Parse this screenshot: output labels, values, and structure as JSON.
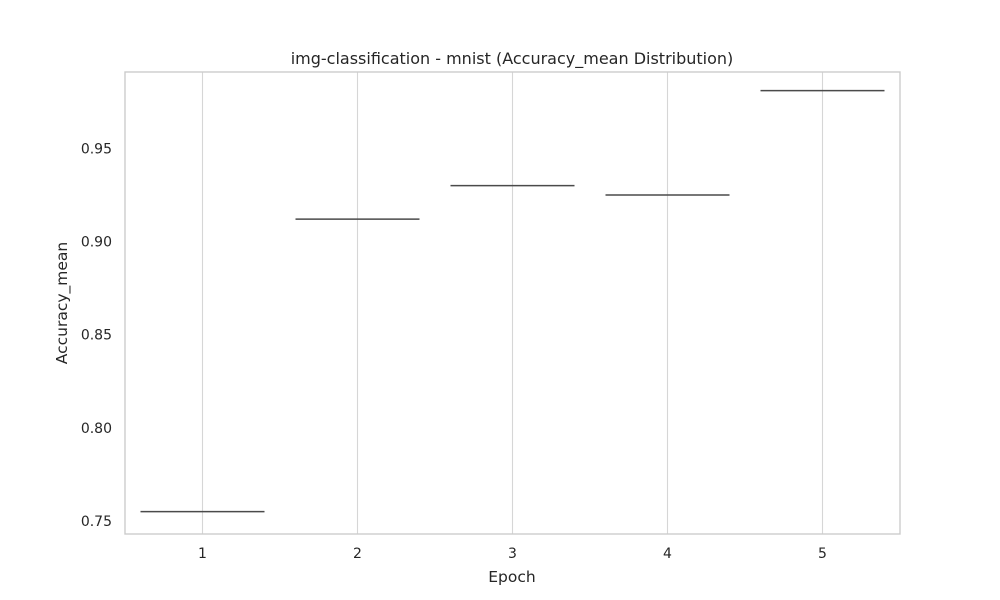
{
  "chart_data": {
    "type": "box",
    "title": "img-classification - mnist (Accuracy_mean Distribution)",
    "xlabel": "Epoch",
    "ylabel": "Accuracy_mean",
    "categories": [
      "1",
      "2",
      "3",
      "4",
      "5"
    ],
    "values": [
      0.755,
      0.912,
      0.93,
      0.925,
      0.981
    ],
    "ylim": [
      0.743,
      0.991
    ],
    "yticks": [
      0.75,
      0.8,
      0.85,
      0.9,
      0.95
    ],
    "ytick_labels": [
      "0.75",
      "0.80",
      "0.85",
      "0.90",
      "0.95"
    ],
    "grid": "vertical",
    "legend": "none",
    "colors": {
      "grid": "#d6d6d6",
      "frame": "#cccccc",
      "box_line": "#4a4a4a",
      "text": "#262626"
    }
  }
}
